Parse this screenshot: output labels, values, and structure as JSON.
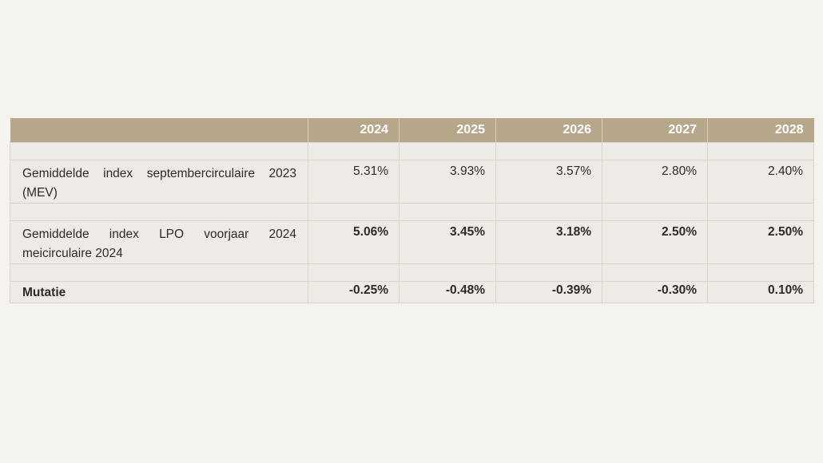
{
  "table": {
    "header": [
      "",
      "2024",
      "2025",
      "2026",
      "2027",
      "2028"
    ],
    "rows": [
      {
        "label": "Gemiddelde index septembercirculaire 2023 (MEV)",
        "values": [
          "5.31%",
          "3.93%",
          "3.57%",
          "2.80%",
          "2.40%"
        ]
      },
      {
        "label": "Gemiddelde index LPO voorjaar 2024 meicirculaire 2024",
        "values": [
          "5.06%",
          "3.45%",
          "3.18%",
          "2.50%",
          "2.50%"
        ]
      },
      {
        "label": "Mutatie",
        "values": [
          "-0.25%",
          "-0.48%",
          "-0.39%",
          "-0.30%",
          "0.10%"
        ]
      }
    ]
  },
  "colors": {
    "header_bg": "#b7a78a",
    "header_text": "#ffffff",
    "cell_bg": "#eeebe6",
    "page_bg": "#f5f3ef"
  }
}
